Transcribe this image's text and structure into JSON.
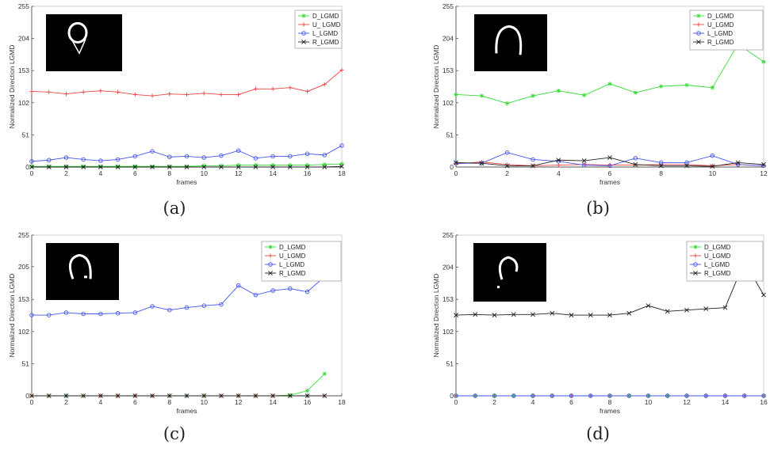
{
  "chart_data": [
    {
      "type": "line",
      "caption": "(a)",
      "xlabel": "frames",
      "ylabel": "Normalized Direction LGMD",
      "xlim": [
        0,
        18
      ],
      "ylim": [
        0,
        255
      ],
      "xticks": [
        0,
        2,
        4,
        6,
        8,
        10,
        12,
        14,
        16,
        18
      ],
      "yticks": [
        0,
        51,
        102,
        153,
        204,
        255
      ],
      "legend_position": "top-right",
      "inset": "binary image of looping ring shape",
      "series": [
        {
          "name": "D_LGMD",
          "color": "#33dd33",
          "marker": "star",
          "x": [
            0,
            1,
            2,
            3,
            4,
            5,
            6,
            7,
            8,
            9,
            10,
            11,
            12,
            13,
            14,
            15,
            16,
            17,
            18
          ],
          "y": [
            1,
            1,
            1,
            1,
            1,
            1,
            1,
            1,
            1,
            1,
            2,
            2,
            3,
            3,
            3,
            3,
            3,
            4,
            5
          ]
        },
        {
          "name": "U_ LGMD",
          "color": "#ee4444",
          "marker": "plus",
          "x": [
            0,
            1,
            2,
            3,
            4,
            5,
            6,
            7,
            8,
            9,
            10,
            11,
            12,
            13,
            14,
            15,
            16,
            17,
            18
          ],
          "y": [
            120,
            119,
            116,
            119,
            121,
            119,
            115,
            113,
            116,
            115,
            117,
            115,
            115,
            124,
            124,
            126,
            120,
            131,
            154
          ]
        },
        {
          "name": "L_LGMD",
          "color": "#4455ee",
          "marker": "circle",
          "x": [
            0,
            1,
            2,
            3,
            4,
            5,
            6,
            7,
            8,
            9,
            10,
            11,
            12,
            13,
            14,
            15,
            16,
            17,
            18
          ],
          "y": [
            9,
            11,
            15,
            12,
            10,
            12,
            17,
            25,
            16,
            17,
            15,
            18,
            26,
            14,
            17,
            17,
            21,
            19,
            34
          ]
        },
        {
          "name": "R_LGMD",
          "color": "#222222",
          "marker": "x",
          "x": [
            0,
            1,
            2,
            3,
            4,
            5,
            6,
            7,
            8,
            9,
            10,
            11,
            12,
            13,
            14,
            15,
            16,
            17,
            18
          ],
          "y": [
            0,
            0,
            0,
            0,
            0,
            0,
            0,
            0,
            0,
            0,
            0,
            0,
            0,
            0,
            0,
            0,
            0,
            0,
            1
          ]
        }
      ]
    },
    {
      "type": "line",
      "caption": "(b)",
      "xlabel": "frames",
      "ylabel": "Normalized Direction LGMD",
      "xlim": [
        0,
        12
      ],
      "ylim": [
        0,
        255
      ],
      "xticks": [
        0,
        2,
        4,
        6,
        8,
        10,
        12
      ],
      "yticks": [
        0,
        51,
        102,
        153,
        204,
        255
      ],
      "legend_position": "top-right",
      "inset": "binary image of partial ring shape",
      "series": [
        {
          "name": "D_LGMD",
          "color": "#33dd33",
          "marker": "star",
          "x": [
            0,
            1,
            2,
            3,
            4,
            5,
            6,
            7,
            8,
            9,
            10,
            11,
            12
          ],
          "y": [
            115,
            113,
            101,
            113,
            121,
            114,
            132,
            118,
            128,
            130,
            126,
            195,
            167
          ]
        },
        {
          "name": "U_LGMD",
          "color": "#ee4444",
          "marker": "plus",
          "x": [
            0,
            1,
            2,
            3,
            4,
            5,
            6,
            7,
            8,
            9,
            10,
            11,
            12
          ],
          "y": [
            5,
            8,
            4,
            2,
            3,
            4,
            3,
            3,
            4,
            4,
            2,
            4,
            2
          ]
        },
        {
          "name": "L_LGMD",
          "color": "#4455ee",
          "marker": "circle",
          "x": [
            0,
            1,
            2,
            3,
            4,
            5,
            6,
            7,
            8,
            9,
            10,
            11,
            12
          ],
          "y": [
            6,
            6,
            23,
            12,
            9,
            3,
            2,
            14,
            7,
            7,
            18,
            4,
            2
          ]
        },
        {
          "name": "R_LGMD",
          "color": "#222222",
          "marker": "x",
          "x": [
            0,
            1,
            2,
            3,
            4,
            5,
            6,
            7,
            8,
            9,
            10,
            11,
            12
          ],
          "y": [
            7,
            6,
            2,
            2,
            11,
            10,
            15,
            4,
            2,
            2,
            1,
            7,
            4
          ]
        }
      ]
    },
    {
      "type": "line",
      "caption": "(c)",
      "xlabel": "frames",
      "ylabel": "Normalized Direction LGMD",
      "xlim": [
        0,
        18
      ],
      "ylim": [
        0,
        255
      ],
      "xticks": [
        0,
        2,
        4,
        6,
        8,
        10,
        12,
        14,
        16,
        18
      ],
      "yticks": [
        0,
        51,
        102,
        153,
        205,
        255
      ],
      "legend_position": "top-right",
      "inset": "binary image of ring shape",
      "series": [
        {
          "name": "D_LGMD",
          "color": "#33dd33",
          "marker": "star",
          "x": [
            0,
            1,
            2,
            3,
            4,
            5,
            6,
            7,
            8,
            9,
            10,
            11,
            12,
            13,
            14,
            15,
            16,
            17
          ],
          "y": [
            0,
            0,
            0,
            0,
            0,
            0,
            0,
            0,
            0,
            0,
            0,
            0,
            0,
            0,
            0,
            1,
            8,
            35
          ]
        },
        {
          "name": "U_LGMD",
          "color": "#ee4444",
          "marker": "plus",
          "x": [
            0,
            1,
            2,
            3,
            4,
            5,
            6,
            7,
            8,
            9,
            10,
            11,
            12,
            13,
            14,
            15,
            16,
            17
          ],
          "y": [
            0,
            0,
            0,
            0,
            0,
            0,
            0,
            0,
            0,
            0,
            0,
            0,
            0,
            0,
            0,
            0,
            0,
            0
          ]
        },
        {
          "name": "L_LGMD",
          "color": "#4455ee",
          "marker": "circle",
          "x": [
            0,
            1,
            2,
            3,
            4,
            5,
            6,
            7,
            8,
            9,
            10,
            11,
            12,
            13,
            14,
            15,
            16,
            17
          ],
          "y": [
            128,
            128,
            132,
            130,
            130,
            131,
            132,
            142,
            136,
            140,
            143,
            145,
            175,
            160,
            167,
            170,
            165,
            189
          ]
        },
        {
          "name": "R_LGMD",
          "color": "#222222",
          "marker": "x",
          "x": [
            0,
            1,
            2,
            3,
            4,
            5,
            6,
            7,
            8,
            9,
            10,
            11,
            12,
            13,
            14,
            15,
            16,
            17
          ],
          "y": [
            0,
            0,
            0,
            0,
            0,
            0,
            0,
            0,
            0,
            0,
            0,
            0,
            0,
            0,
            0,
            0,
            0,
            0
          ]
        }
      ]
    },
    {
      "type": "line",
      "caption": "(d)",
      "xlabel": "frames",
      "ylabel": "Normalized Direction LGMD",
      "xlim": [
        0,
        16
      ],
      "ylim": [
        0,
        255
      ],
      "xticks": [
        0,
        2,
        4,
        6,
        8,
        10,
        12,
        14,
        16
      ],
      "yticks": [
        0,
        51,
        102,
        153,
        204,
        255
      ],
      "legend_position": "top-right",
      "inset": "binary image of partial ring shape",
      "series": [
        {
          "name": "D_LGMD",
          "color": "#33dd33",
          "marker": "star",
          "x": [
            0,
            1,
            2,
            3,
            4,
            5,
            6,
            7,
            8,
            9,
            10,
            11,
            12,
            13,
            14,
            15,
            16
          ],
          "y": [
            0,
            0,
            0,
            0,
            0,
            0,
            0,
            0,
            0,
            0,
            0,
            0,
            0,
            0,
            0,
            0,
            0
          ]
        },
        {
          "name": "U_LGMD",
          "color": "#ee4444",
          "marker": "plus",
          "x": [
            0,
            1,
            2,
            3,
            4,
            5,
            6,
            7,
            8,
            9,
            10,
            11,
            12,
            13,
            14,
            15,
            16
          ],
          "y": [
            0,
            0,
            0,
            0,
            0,
            0,
            0,
            0,
            0,
            0,
            0,
            0,
            0,
            0,
            0,
            0,
            0
          ]
        },
        {
          "name": "L_LGMD",
          "color": "#4455ee",
          "marker": "circle",
          "x": [
            0,
            1,
            2,
            3,
            4,
            5,
            6,
            7,
            8,
            9,
            10,
            11,
            12,
            13,
            14,
            15,
            16
          ],
          "y": [
            0,
            0,
            0,
            0,
            0,
            0,
            0,
            0,
            0,
            0,
            0,
            0,
            0,
            0,
            0,
            0,
            0
          ]
        },
        {
          "name": "R_LGMD",
          "color": "#222222",
          "marker": "x",
          "x": [
            0,
            1,
            2,
            3,
            4,
            5,
            6,
            7,
            8,
            9,
            10,
            11,
            12,
            13,
            14,
            15,
            16
          ],
          "y": [
            128,
            129,
            128,
            129,
            129,
            131,
            128,
            128,
            128,
            131,
            143,
            134,
            136,
            138,
            140,
            213,
            160
          ]
        }
      ]
    }
  ]
}
